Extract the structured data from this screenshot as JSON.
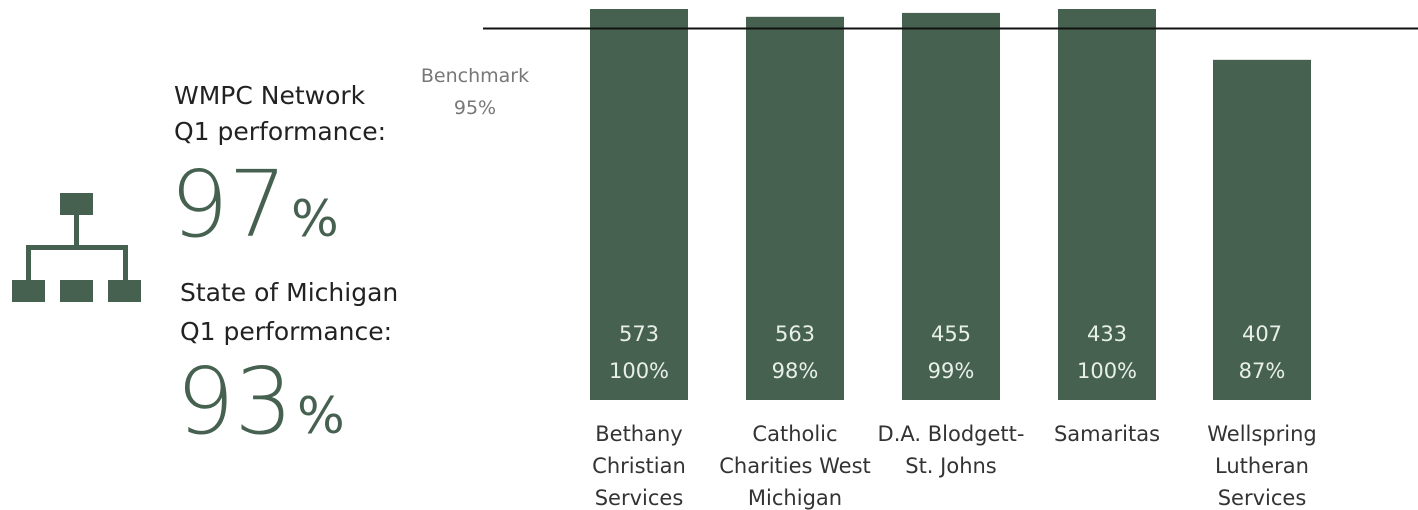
{
  "summary": {
    "network": {
      "lines": [
        "WMPC Network",
        "Q1 performance:"
      ],
      "value": 97
    },
    "state": {
      "lines": [
        "State of Michigan",
        "Q1 performance:"
      ],
      "value": 93
    },
    "unit": "%"
  },
  "chart_data": {
    "type": "bar",
    "color": "#466150",
    "categories": [
      [
        "Bethany",
        "Christian",
        "Services"
      ],
      [
        "Catholic",
        "Charities West",
        "Michigan"
      ],
      [
        "D.A. Blodgett-",
        "St. Johns"
      ],
      [
        "Samaritas"
      ],
      [
        "Wellspring",
        "Lutheran",
        "Services"
      ]
    ],
    "values": [
      100,
      98,
      99,
      100,
      87
    ],
    "value_labels": [
      "100%",
      "98%",
      "99%",
      "100%",
      "87%"
    ],
    "counts": [
      573,
      563,
      455,
      433,
      407
    ],
    "ylim": [
      0,
      100
    ],
    "benchmark": {
      "label": "Benchmark",
      "value": 95,
      "value_label": "95%"
    }
  }
}
